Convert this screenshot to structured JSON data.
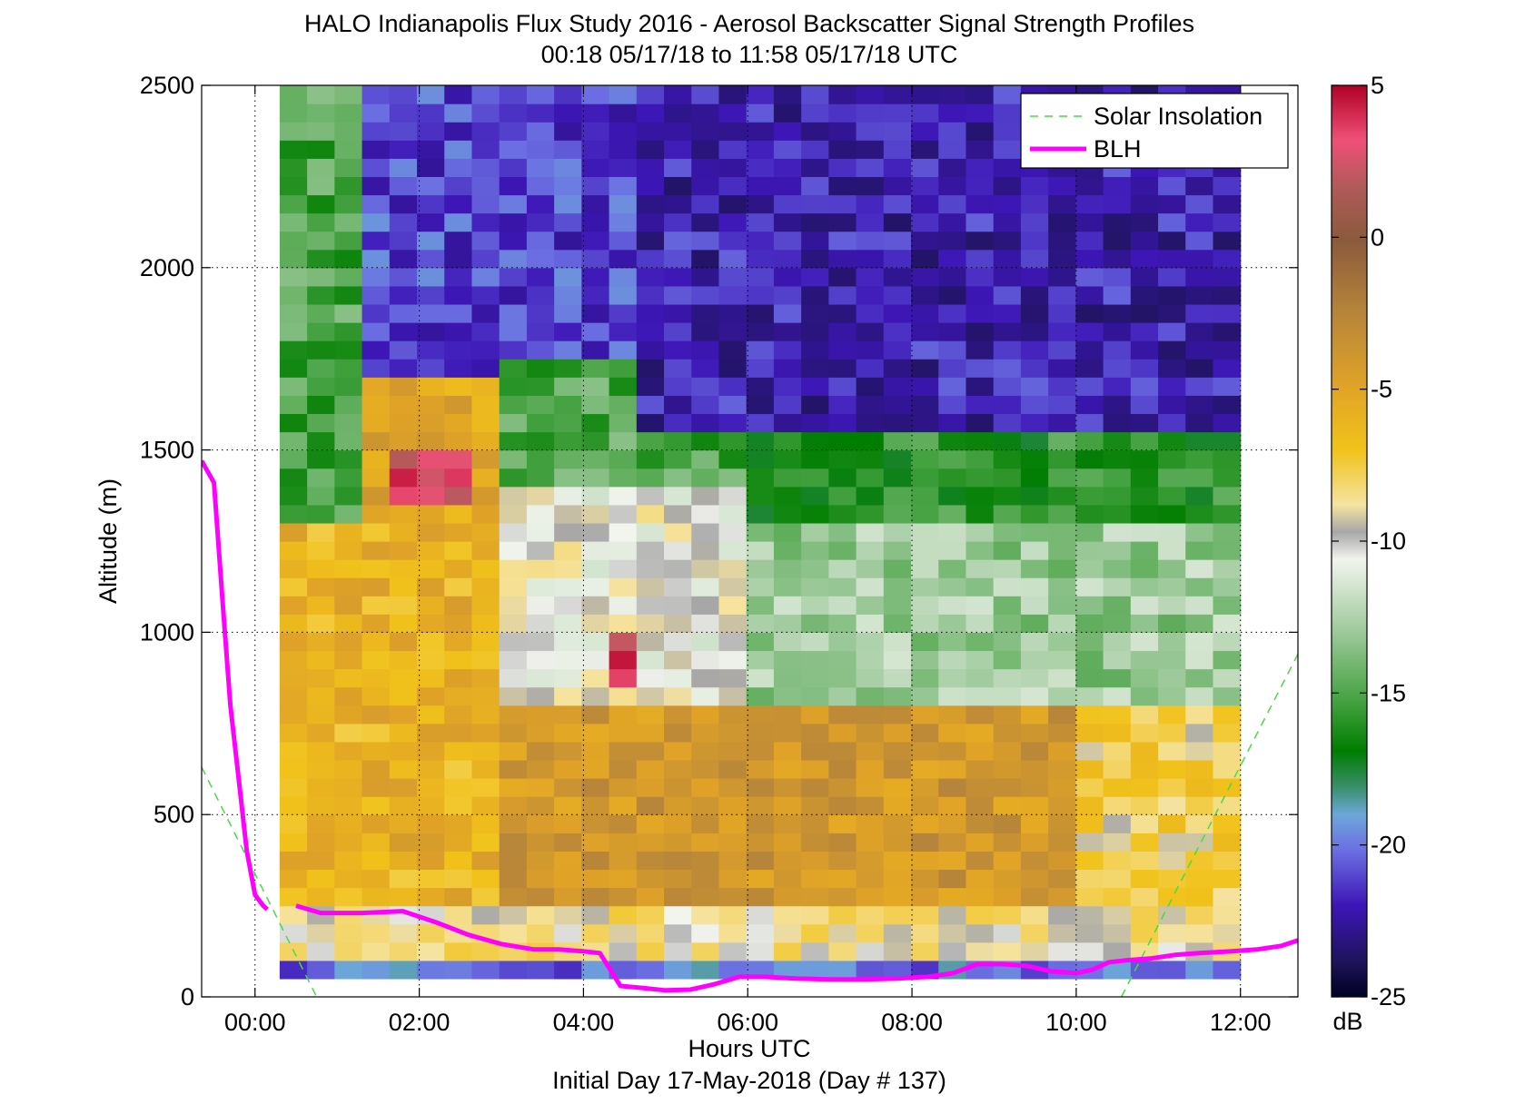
{
  "chart_data": {
    "type": "heatmap",
    "title": "HALO Indianapolis Flux Study 2016 - Aerosol Backscatter Signal Strength Profiles",
    "subtitle": "00:18 05/17/18 to 11:58 05/17/18  UTC",
    "xlabel": "Hours UTC",
    "xlabel2": "Initial Day 17-May-2018 (Day # 137)",
    "ylabel": "Altitude (m)",
    "x_tick_labels": [
      "00:00",
      "02:00",
      "04:00",
      "06:00",
      "08:00",
      "10:00",
      "12:00"
    ],
    "x_tick_values": [
      0,
      2,
      4,
      6,
      8,
      10,
      12
    ],
    "xlim": [
      -0.65,
      12.7
    ],
    "y_tick_labels": [
      "0",
      "500",
      "1000",
      "1500",
      "2000",
      "2500"
    ],
    "y_tick_values": [
      0,
      500,
      1000,
      1500,
      2000,
      2500
    ],
    "ylim": [
      0,
      2500
    ],
    "grid": "dotted",
    "colorbar": {
      "label": "dB",
      "range": [
        -25,
        5
      ],
      "tick_labels": [
        "5",
        "0",
        "-5",
        "-10",
        "-15",
        "-20",
        "-25"
      ],
      "tick_values": [
        5,
        0,
        -5,
        -10,
        -15,
        -20,
        -25
      ]
    },
    "legend": {
      "position": "top-right",
      "entries": [
        {
          "label": "Solar Insolation",
          "color": "#44dd44",
          "style": "dashed"
        },
        {
          "label": "BLH",
          "color": "#ff00ff",
          "style": "solid"
        }
      ]
    },
    "heatmap_grid": {
      "time_start": 0.3,
      "time_end": 12.0,
      "time_bin_count": 35,
      "alt_start": 50,
      "alt_end": 2500,
      "alt_bin_count": 49
    },
    "heatmap_regions": [
      {
        "t0": 0.3,
        "t1": 12.0,
        "a0": 50,
        "a1": 100,
        "db": -20,
        "note": "lowest gate"
      },
      {
        "t0": 0.3,
        "t1": 12.0,
        "a0": 100,
        "a1": 250,
        "db": -9
      },
      {
        "t0": 0.3,
        "t1": 3.0,
        "a0": 250,
        "a1": 1300,
        "db": -6
      },
      {
        "t0": 3.0,
        "t1": 10.0,
        "a0": 250,
        "a1": 800,
        "db": -4
      },
      {
        "t0": 10.0,
        "t1": 12.0,
        "a0": 250,
        "a1": 800,
        "db": -8
      },
      {
        "t0": 0.3,
        "t1": 1.3,
        "a0": 1300,
        "a1": 2500,
        "db": -15
      },
      {
        "t0": 1.3,
        "t1": 3.0,
        "a0": 1300,
        "a1": 1700,
        "db": -5
      },
      {
        "t0": 1.6,
        "t1": 2.5,
        "a0": 1350,
        "a1": 1500,
        "db": 3
      },
      {
        "t0": 1.3,
        "t1": 4.5,
        "a0": 1700,
        "a1": 2500,
        "db": -21
      },
      {
        "t0": 3.0,
        "t1": 6.0,
        "a0": 800,
        "a1": 1400,
        "db": -10
      },
      {
        "t0": 4.3,
        "t1": 4.8,
        "a0": 850,
        "a1": 1000,
        "db": 3
      },
      {
        "t0": 6.0,
        "t1": 12.0,
        "a0": 800,
        "a1": 1300,
        "db": -13
      },
      {
        "t0": 3.0,
        "t1": 6.0,
        "a0": 1400,
        "a1": 1750,
        "db": -15
      },
      {
        "t0": 6.0,
        "t1": 12.0,
        "a0": 1300,
        "a1": 1550,
        "db": -16
      },
      {
        "t0": 4.5,
        "t1": 12.0,
        "a0": 1550,
        "a1": 2500,
        "db": -22
      }
    ],
    "series": [
      {
        "name": "BLH",
        "color": "#ff00ff",
        "x": [
          -0.65,
          -0.5,
          -0.4,
          -0.3,
          -0.2,
          -0.1,
          0.0,
          0.1,
          0.15,
          0.5,
          0.8,
          1.0,
          1.3,
          1.8,
          2.2,
          2.6,
          3.0,
          3.4,
          3.7,
          4.0,
          4.2,
          4.45,
          4.7,
          5.0,
          5.3,
          5.6,
          5.9,
          6.2,
          6.6,
          7.0,
          7.4,
          7.8,
          8.2,
          8.5,
          8.8,
          9.1,
          9.4,
          9.7,
          10.0,
          10.2,
          10.4,
          10.6,
          10.9,
          11.2,
          11.5,
          11.9,
          12.2,
          12.5,
          12.7
        ],
        "y": [
          1470,
          1410,
          1100,
          800,
          600,
          400,
          280,
          250,
          240,
          250,
          230,
          230,
          230,
          235,
          205,
          170,
          145,
          130,
          130,
          125,
          120,
          30,
          25,
          18,
          20,
          35,
          55,
          55,
          50,
          48,
          48,
          50,
          55,
          65,
          90,
          90,
          85,
          70,
          65,
          75,
          95,
          100,
          105,
          115,
          120,
          125,
          130,
          140,
          155
        ]
      },
      {
        "name": "Solar Insolation",
        "color": "#44dd44",
        "x": [
          -0.65,
          0.75
        ],
        "y": [
          630,
          0
        ],
        "x2": [
          10.55,
          12.7
        ],
        "y2": [
          0,
          940
        ]
      }
    ]
  }
}
